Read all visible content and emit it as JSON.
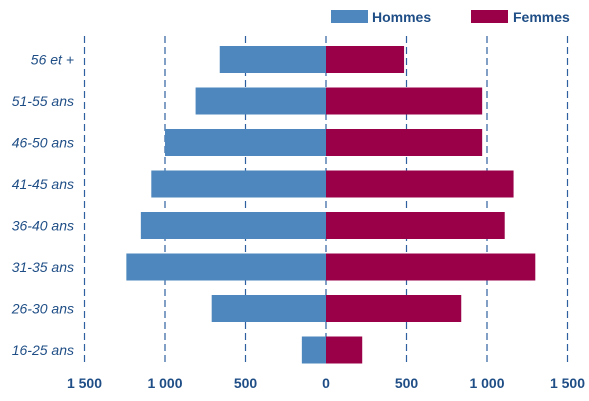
{
  "chart_data": {
    "type": "bar",
    "orientation": "horizontal",
    "layout": "population-pyramid",
    "categories": [
      "56 et +",
      "51-55 ans",
      "46-50 ans",
      "41-45 ans",
      "36-40 ans",
      "31-35 ans",
      "26-30 ans",
      "16-25 ans"
    ],
    "series": [
      {
        "name": "Hommes",
        "color": "#4d87bd",
        "side": "left",
        "values": [
          660,
          810,
          1000,
          1085,
          1150,
          1240,
          710,
          150
        ]
      },
      {
        "name": "Femmes",
        "color": "#9a0048",
        "side": "right",
        "values": [
          485,
          970,
          970,
          1165,
          1110,
          1300,
          840,
          225
        ]
      }
    ],
    "xlim": [
      -1500,
      1500
    ],
    "xticks": [
      -1500,
      -1000,
      -500,
      0,
      500,
      1000,
      1500
    ],
    "xtick_labels": [
      "1 500",
      "1 000",
      "500",
      "0",
      "500",
      "1 000",
      "1 500"
    ],
    "gridlines": "vertical-dashed",
    "legend_position": "top-right",
    "title": "",
    "xlabel": "",
    "ylabel": ""
  },
  "colors": {
    "text": "#1f4e86",
    "grid": "#2e5f9e"
  }
}
